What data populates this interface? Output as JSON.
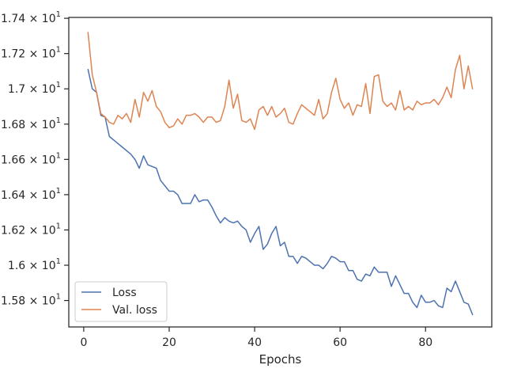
{
  "chart_data": {
    "type": "line",
    "title": "",
    "xlabel": "Epochs",
    "ylabel": "",
    "xlim": [
      -3.5,
      95.5
    ],
    "ylim": [
      15.65,
      17.405
    ],
    "grid": false,
    "legend_position": "lower-left",
    "x_ticks": [
      0,
      20,
      40,
      60,
      80
    ],
    "y_ticks": [
      {
        "value": 15.8,
        "mantissa": "1.58",
        "base": "10",
        "exp": "1"
      },
      {
        "value": 16.0,
        "mantissa": "1.6",
        "base": "10",
        "exp": "1"
      },
      {
        "value": 16.2,
        "mantissa": "1.62",
        "base": "10",
        "exp": "1"
      },
      {
        "value": 16.4,
        "mantissa": "1.64",
        "base": "10",
        "exp": "1"
      },
      {
        "value": 16.6,
        "mantissa": "1.66",
        "base": "10",
        "exp": "1"
      },
      {
        "value": 16.8,
        "mantissa": "1.68",
        "base": "10",
        "exp": "1"
      },
      {
        "value": 17.0,
        "mantissa": "1.7",
        "base": "10",
        "exp": "1"
      },
      {
        "value": 17.2,
        "mantissa": "1.72",
        "base": "10",
        "exp": "1"
      },
      {
        "value": 17.4,
        "mantissa": "1.74",
        "base": "10",
        "exp": "1"
      }
    ],
    "series": [
      {
        "name": "Loss",
        "color": "#4c72b0",
        "values": [
          17.11,
          17.0,
          16.98,
          16.85,
          16.84,
          16.73,
          16.71,
          16.69,
          16.67,
          16.65,
          16.63,
          16.6,
          16.55,
          16.62,
          16.57,
          16.56,
          16.55,
          16.48,
          16.45,
          16.42,
          16.42,
          16.4,
          16.35,
          16.35,
          16.35,
          16.4,
          16.36,
          16.37,
          16.37,
          16.33,
          16.28,
          16.24,
          16.27,
          16.25,
          16.24,
          16.25,
          16.22,
          16.2,
          16.13,
          16.18,
          16.22,
          16.09,
          16.12,
          16.18,
          16.22,
          16.11,
          16.13,
          16.05,
          16.05,
          16.01,
          16.05,
          16.04,
          16.02,
          16.0,
          16.0,
          15.98,
          16.01,
          16.05,
          16.04,
          16.02,
          16.02,
          15.97,
          15.97,
          15.92,
          15.91,
          15.95,
          15.94,
          15.99,
          15.96,
          15.96,
          15.96,
          15.88,
          15.94,
          15.89,
          15.84,
          15.84,
          15.79,
          15.76,
          15.83,
          15.79,
          15.79,
          15.8,
          15.77,
          15.76,
          15.87,
          15.85,
          15.91,
          15.85,
          15.79,
          15.78,
          15.72
        ]
      },
      {
        "name": "Val. loss",
        "color": "#dd8452",
        "values": [
          17.32,
          17.08,
          16.98,
          16.86,
          16.84,
          16.81,
          16.8,
          16.85,
          16.83,
          16.86,
          16.81,
          16.94,
          16.84,
          16.98,
          16.93,
          16.99,
          16.9,
          16.87,
          16.81,
          16.78,
          16.79,
          16.83,
          16.8,
          16.85,
          16.85,
          16.86,
          16.84,
          16.81,
          16.84,
          16.84,
          16.81,
          16.82,
          16.9,
          17.05,
          16.89,
          16.97,
          16.82,
          16.81,
          16.83,
          16.77,
          16.88,
          16.9,
          16.85,
          16.9,
          16.84,
          16.86,
          16.89,
          16.81,
          16.8,
          16.86,
          16.91,
          16.89,
          16.87,
          16.85,
          16.94,
          16.83,
          16.86,
          16.98,
          17.06,
          16.94,
          16.89,
          16.92,
          16.85,
          16.91,
          16.9,
          17.03,
          16.86,
          17.07,
          17.08,
          16.93,
          16.9,
          16.92,
          16.88,
          16.99,
          16.88,
          16.9,
          16.88,
          16.93,
          16.91,
          16.92,
          16.92,
          16.94,
          16.91,
          16.95,
          17.01,
          16.95,
          17.11,
          17.19,
          17.0,
          17.13,
          17.0
        ]
      }
    ]
  }
}
